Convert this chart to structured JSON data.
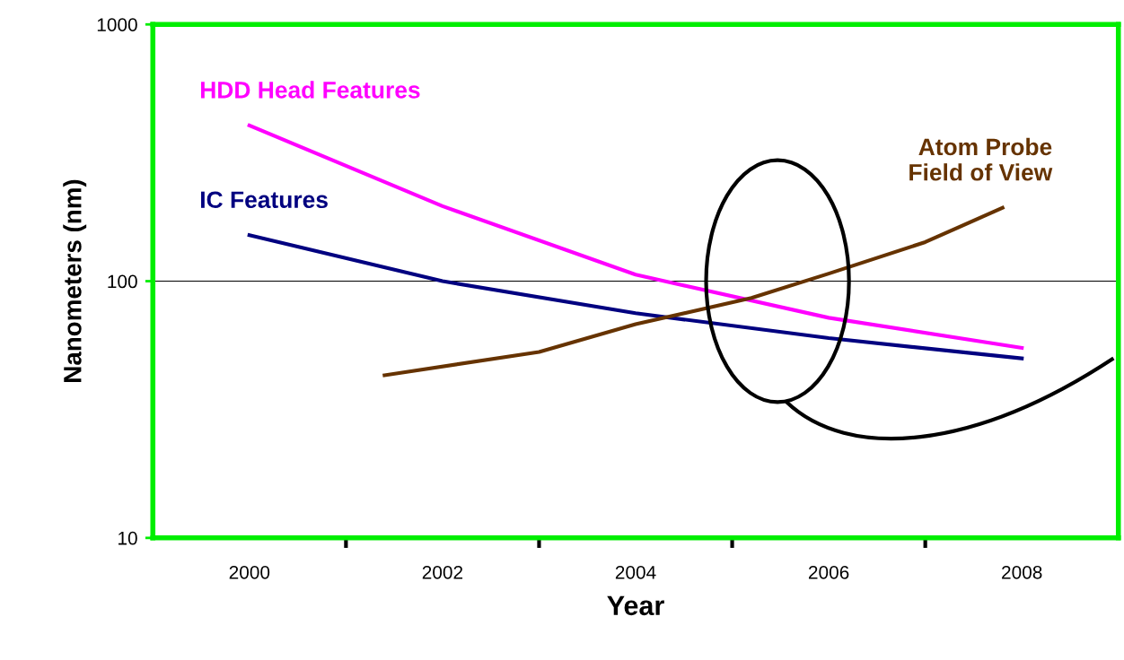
{
  "chart_data": {
    "type": "line",
    "xlabel": "Year",
    "ylabel": "Nanometers (nm)",
    "x": [
      2000,
      2002,
      2004,
      2006,
      2008
    ],
    "series": [
      {
        "name": "HDD Head Features",
        "color": "#ff00ff",
        "values": [
          404,
          196,
          106,
          72,
          55
        ]
      },
      {
        "name": "IC Features",
        "color": "#000080",
        "values": [
          151,
          100,
          75,
          60,
          50
        ]
      },
      {
        "name": "Atom Probe\nField of View",
        "color": "#663300",
        "x": [
          2001.4,
          2003,
          2004,
          2005.2,
          2006,
          2007,
          2007.8
        ],
        "values": [
          43,
          53,
          68,
          86,
          107,
          142,
          193
        ]
      }
    ],
    "log": "y",
    "ylim": [
      10,
      1000
    ],
    "yticks": [
      10,
      100,
      1000
    ],
    "xlim": [
      1999,
      2009
    ],
    "xticks": [
      2000,
      2002,
      2004,
      2006,
      2008,
      {
        "value": 2001,
        "label": null
      },
      {
        "value": 2003,
        "label": null
      },
      {
        "value": 2005,
        "label": null
      },
      {
        "value": 2007,
        "label": null
      }
    ],
    "grid": "y",
    "legend": false,
    "marker": "none",
    "line_style": "solid"
  }
}
